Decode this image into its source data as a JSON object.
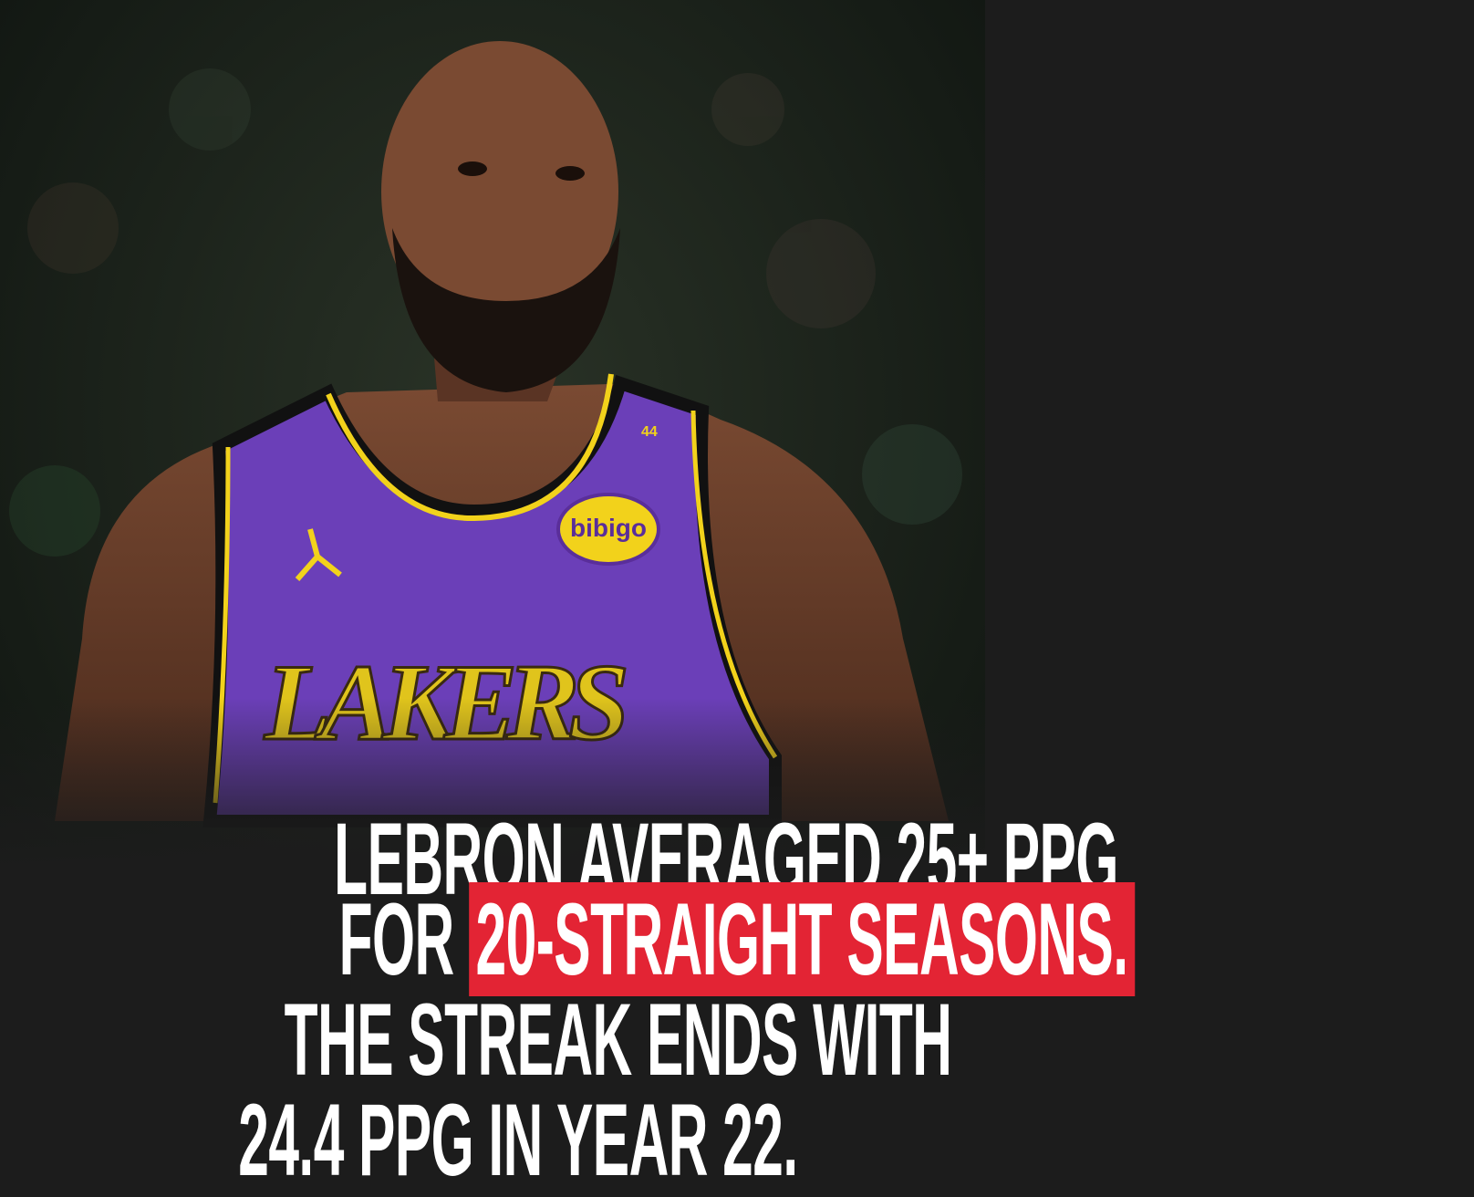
{
  "image": {
    "subject": "basketball-player-photo",
    "jersey_text": "LAKERS",
    "jersey_number_tag": "44",
    "sponsor_patch": "bibigo",
    "colors": {
      "jersey": "#6b3fb8",
      "trim": "#f2d21b",
      "background": "#1c1c1c",
      "highlight": "#e32434"
    }
  },
  "headline": {
    "line1": "LEBRON AVERAGED 25+ PPG",
    "line2_prefix": "FOR",
    "line2_highlight": "20-STRAIGHT SEASONS.",
    "line3": "THE STREAK ENDS WITH",
    "line4": "24.4 PPG IN YEAR 22."
  }
}
